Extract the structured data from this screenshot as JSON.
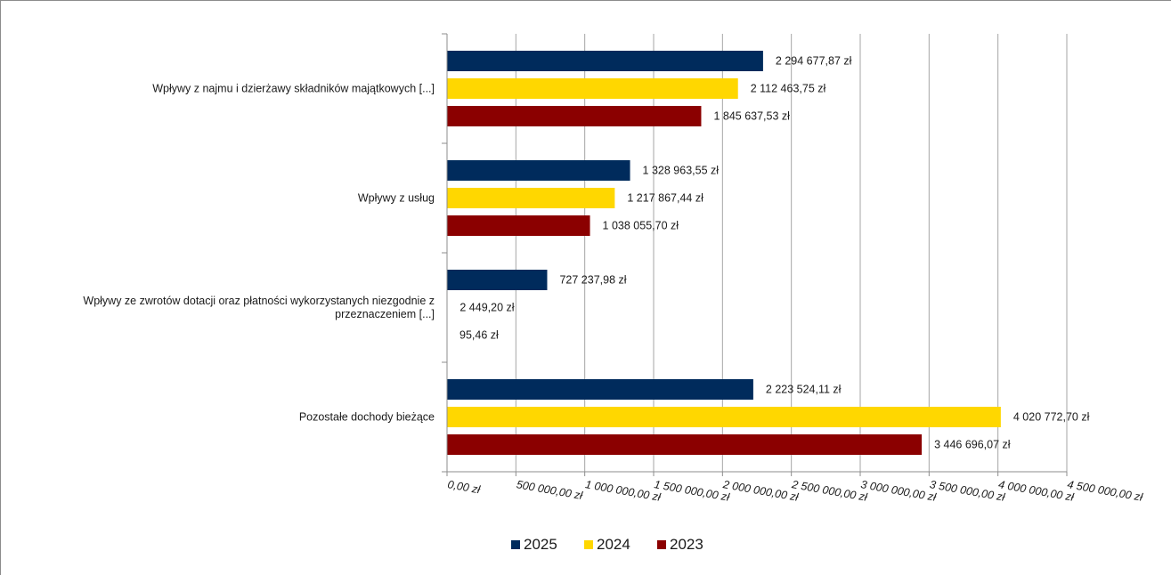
{
  "chart_data": {
    "type": "bar",
    "orientation": "horizontal",
    "categories": [
      [
        "Wpływy z najmu i dzierżawy składników majątkowych [...]"
      ],
      [
        "Wpływy z usług"
      ],
      [
        "Wpływy ze zwrotów dotacji oraz płatności wykorzystanych niezgodnie z",
        "przeznaczeniem [...]"
      ],
      [
        "Pozostałe dochody bieżące"
      ]
    ],
    "series": [
      {
        "name": "2025",
        "color": "#002b5c",
        "values": [
          2294677.87,
          1328963.55,
          727237.98,
          2223524.11
        ],
        "labels": [
          "2 294 677,87  zł",
          "1 328 963,55  zł",
          "727 237,98  zł",
          "2 223 524,11  zł"
        ]
      },
      {
        "name": "2024",
        "color": "#ffd700",
        "values": [
          2112463.75,
          1217867.44,
          2449.2,
          4020772.7
        ],
        "labels": [
          "2 112 463,75  zł",
          "1 217 867,44  zł",
          "2 449,20  zł",
          "4 020 772,70  zł"
        ]
      },
      {
        "name": "2023",
        "color": "#8b0000",
        "values": [
          1845637.53,
          1038055.7,
          95.46,
          3446696.07
        ],
        "labels": [
          "1 845 637,53  zł",
          "1 038 055,70  zł",
          "95,46  zł",
          "3 446 696,07  zł"
        ]
      }
    ],
    "xlim": [
      0,
      4500000
    ],
    "xticks": [
      0,
      500000,
      1000000,
      1500000,
      2000000,
      2500000,
      3000000,
      3500000,
      4000000,
      4500000
    ],
    "xtick_labels": [
      "0,00 zł",
      "500 000,00 zł",
      "1 000 000,00 zł",
      "1 500 000,00 zł",
      "2 000 000,00 zł",
      "2 500 000,00 zł",
      "3 000 000,00 zł",
      "3 500 000,00 zł",
      "4 000 000,00 zł",
      "4 500 000,00 zł"
    ],
    "grid": true,
    "legend_position": "bottom-center"
  }
}
